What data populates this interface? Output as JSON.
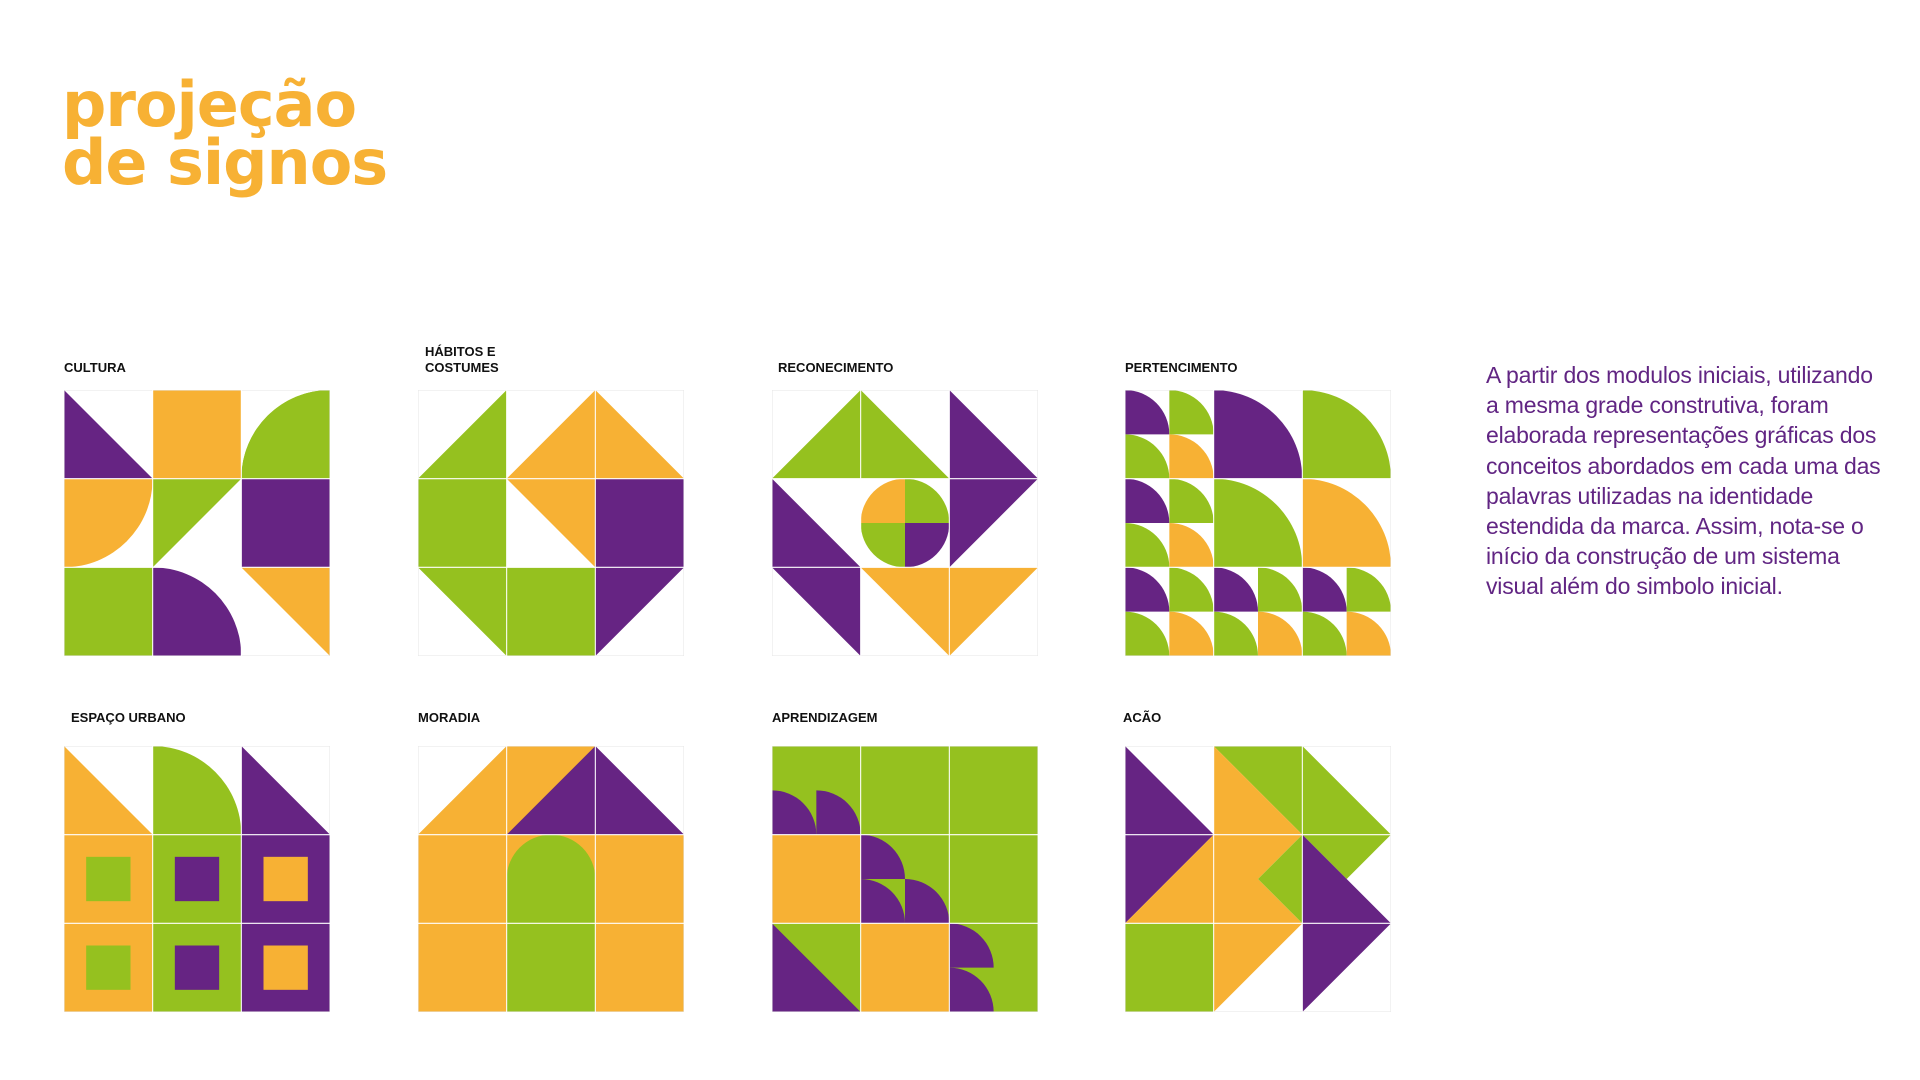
{
  "title": {
    "line1": "projeção",
    "line2": "de signos"
  },
  "description": "A partir dos modulos iniciais, utilizando a mesma grade construtiva, foram elaborada representações gráficas dos conceitos abordados em cada uma das palavras utilizadas na identidade estendida da marca. Assim, nota-se o início da construção de um sistema visual além do simbolo inicial.",
  "colors": {
    "orange": "#F7B134",
    "green": "#95C11F",
    "purple": "#662483",
    "grid_line": "#E6E6E6"
  },
  "modules": [
    {
      "label": "CULTURA"
    },
    {
      "label": "HÁBITOS E COSTUMES"
    },
    {
      "label": "RECONECIMENTO"
    },
    {
      "label": "PERTENCIMENTO"
    },
    {
      "label": "ESPAÇO URBANO"
    },
    {
      "label": "MORADIA"
    },
    {
      "label": "APRENDIZAGEM"
    },
    {
      "label": "ACÃO"
    }
  ]
}
